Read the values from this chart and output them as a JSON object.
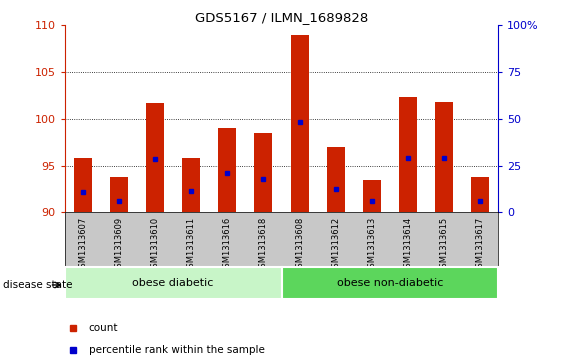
{
  "title": "GDS5167 / ILMN_1689828",
  "samples": [
    "GSM1313607",
    "GSM1313609",
    "GSM1313610",
    "GSM1313611",
    "GSM1313616",
    "GSM1313618",
    "GSM1313608",
    "GSM1313612",
    "GSM1313613",
    "GSM1313614",
    "GSM1313615",
    "GSM1313617"
  ],
  "count_values": [
    95.8,
    93.8,
    101.7,
    95.8,
    99.0,
    98.5,
    109.0,
    97.0,
    93.5,
    102.3,
    101.8,
    93.8
  ],
  "percentile_values": [
    92.2,
    91.2,
    95.7,
    92.3,
    94.2,
    93.6,
    99.7,
    92.5,
    91.2,
    95.8,
    95.8,
    91.2
  ],
  "ymin": 90,
  "ymax": 110,
  "yticks": [
    90,
    95,
    100,
    105,
    110
  ],
  "right_yticks": [
    0,
    25,
    50,
    75,
    100
  ],
  "groups": [
    {
      "label": "obese diabetic",
      "start": 0,
      "end": 5
    },
    {
      "label": "obese non-diabetic",
      "start": 6,
      "end": 11
    }
  ],
  "group_colors": [
    "#c8f5c8",
    "#5cd65c"
  ],
  "bar_color": "#CC2200",
  "blue_color": "#0000CC",
  "bar_width": 0.5,
  "disease_state_label": "disease state",
  "legend_count_label": "count",
  "legend_percentile_label": "percentile rank within the sample",
  "left_axis_color": "#CC2200",
  "right_axis_color": "#0000CC",
  "xlabel_bg": "#C8C8C8",
  "grid_dotted_ticks": [
    95,
    100,
    105
  ]
}
